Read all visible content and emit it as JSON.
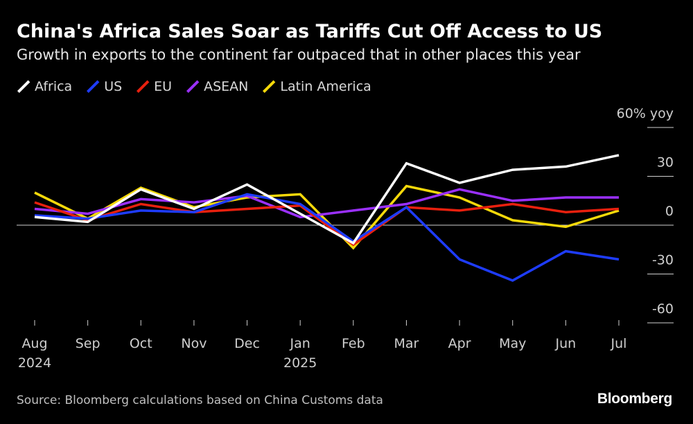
{
  "title": "China's Africa Sales Soar as Tariffs Cut Off Access to US",
  "subtitle": "Growth in exports to the continent far outpaced that in other places this year",
  "source": "Source: Bloomberg calculations based on China Customs data",
  "brand": "Bloomberg",
  "legend": [
    {
      "name": "Africa",
      "color": "#ffffff"
    },
    {
      "name": "US",
      "color": "#1e3cff"
    },
    {
      "name": "EU",
      "color": "#e8200e"
    },
    {
      "name": "ASEAN",
      "color": "#9b30ff"
    },
    {
      "name": "Latin America",
      "color": "#f5d90a"
    }
  ],
  "chart_data": {
    "type": "line",
    "title": "China's Africa Sales Soar as Tariffs Cut Off Access to US",
    "subtitle": "Growth in exports to the continent far outpaced that in other places this year",
    "categories": [
      "Aug",
      "Sep",
      "Oct",
      "Nov",
      "Dec",
      "Jan",
      "Feb",
      "Mar",
      "Apr",
      "May",
      "Jun",
      "Jul"
    ],
    "category_sublabels": [
      "2024",
      "",
      "",
      "",
      "",
      "2025",
      "",
      "",
      "",
      "",
      "",
      ""
    ],
    "y_unit_label": "60% yoy",
    "y_ticks": [
      {
        "value": 60,
        "label": "60% yoy"
      },
      {
        "value": 30,
        "label": "30"
      },
      {
        "value": 0,
        "label": "0"
      },
      {
        "value": -30,
        "label": "-30"
      },
      {
        "value": -60,
        "label": "-60"
      }
    ],
    "ylim": [
      -60,
      60
    ],
    "zero_line": true,
    "grid": false,
    "legend_position": "top-left",
    "series": [
      {
        "name": "Africa",
        "color": "#ffffff",
        "values": [
          5,
          2,
          22,
          10,
          25,
          7,
          -11,
          38,
          26,
          34,
          36,
          43
        ]
      },
      {
        "name": "US",
        "color": "#1e3cff",
        "values": [
          6,
          4,
          9,
          8,
          19,
          13,
          -10,
          11,
          -21,
          -34,
          -16,
          -21
        ]
      },
      {
        "name": "EU",
        "color": "#e8200e",
        "values": [
          14,
          3,
          13,
          8,
          10,
          12,
          -12,
          11,
          9,
          13,
          8,
          10
        ]
      },
      {
        "name": "ASEAN",
        "color": "#9b30ff",
        "values": [
          10,
          7,
          16,
          14,
          18,
          5,
          9,
          13,
          22,
          15,
          17,
          17
        ]
      },
      {
        "name": "Latin America",
        "color": "#f5d90a",
        "values": [
          20,
          4,
          23,
          11,
          17,
          19,
          -14,
          24,
          17,
          3,
          -1,
          9
        ]
      }
    ]
  }
}
